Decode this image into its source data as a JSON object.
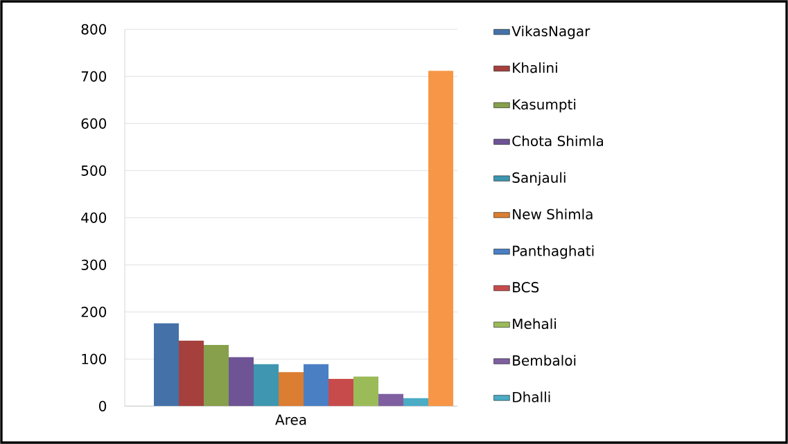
{
  "chart_data": {
    "type": "bar",
    "categories": [
      "Area"
    ],
    "series": [
      {
        "name": "VikasNagar",
        "color": "#4472a8",
        "values": [
          176
        ]
      },
      {
        "name": "Khalini",
        "color": "#a5403d",
        "values": [
          139
        ]
      },
      {
        "name": "Kasumpti",
        "color": "#86a04b",
        "values": [
          130
        ]
      },
      {
        "name": "Chota Shimla",
        "color": "#6e5494",
        "values": [
          104
        ]
      },
      {
        "name": "Sanjauli",
        "color": "#3e96b0",
        "values": [
          89
        ]
      },
      {
        "name": "New Shimla",
        "color": "#db7e32",
        "values": [
          72
        ]
      },
      {
        "name": "Panthaghati",
        "color": "#4a7fc4",
        "values": [
          89
        ]
      },
      {
        "name": "BCS",
        "color": "#c84b4b",
        "values": [
          58
        ]
      },
      {
        "name": "Mehali",
        "color": "#9bbb59",
        "values": [
          63
        ]
      },
      {
        "name": "Bembaloi",
        "color": "#7f5fa0",
        "values": [
          26
        ]
      },
      {
        "name": "Dhalli",
        "color": "#4bacc6",
        "values": [
          17
        ]
      },
      {
        "color": "#f79646",
        "values": [
          712
        ]
      }
    ],
    "ylim": [
      0,
      800
    ],
    "yticks": [
      0,
      100,
      200,
      300,
      400,
      500,
      600,
      700,
      800
    ],
    "grid": "y",
    "legend": "right"
  }
}
